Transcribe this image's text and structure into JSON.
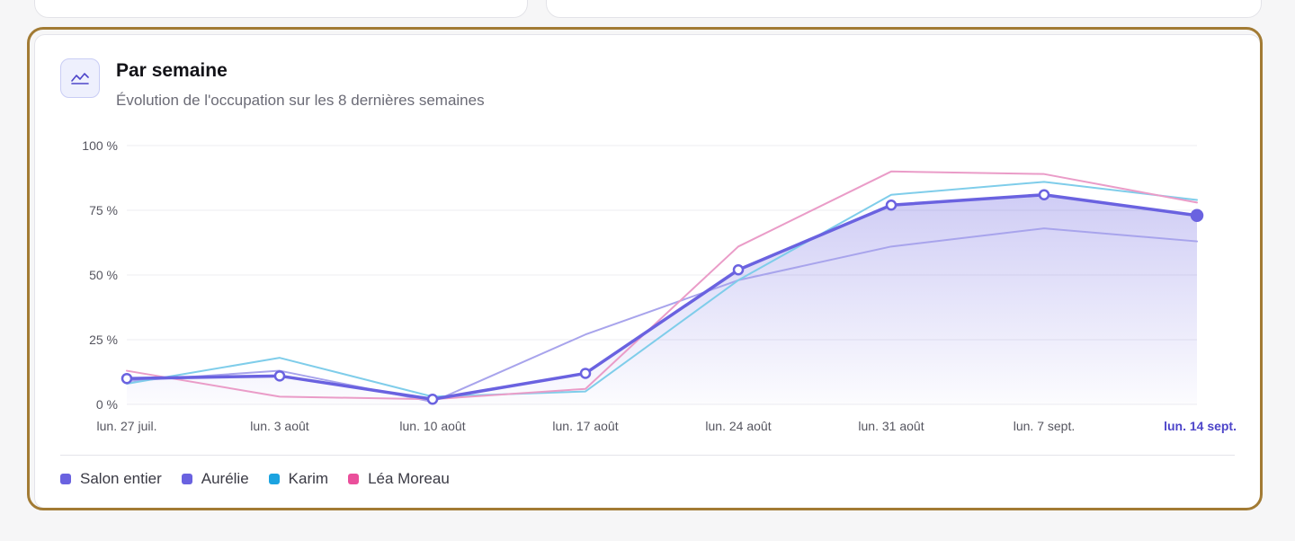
{
  "card": {
    "title": "Par semaine",
    "subtitle": "Évolution de l'occupation sur les 8 dernières semaines",
    "icon": "line-chart-icon"
  },
  "colors": {
    "accent": "#6a62e0",
    "aurelie": "#a8a4ec",
    "karim": "#7fcdea",
    "lea": "#ea9cc8",
    "highlight": "#a27b34",
    "current_label": "#4d45c9"
  },
  "legend": [
    {
      "label": "Salon entier",
      "color": "#6a62e0"
    },
    {
      "label": "Aurélie",
      "color": "#6a62e0"
    },
    {
      "label": "Karim",
      "color": "#1ba3e0"
    },
    {
      "label": "Léa Moreau",
      "color": "#ea4f9b"
    }
  ],
  "chart_data": {
    "type": "line",
    "categories": [
      "lun. 27 juil.",
      "lun. 3 août",
      "lun. 10 août",
      "lun. 17 août",
      "lun. 24 août",
      "lun. 31 août",
      "lun. 7 sept.",
      "lun. 14 sept."
    ],
    "highlighted_category": "lun. 14 sept.",
    "yticks": [
      "0 %",
      "25 %",
      "50 %",
      "75 %",
      "100 %"
    ],
    "ylim": [
      0,
      100
    ],
    "grid": true,
    "legend_position": "bottom-left",
    "series": [
      {
        "name": "Salon entier",
        "values": [
          10,
          11,
          2,
          12,
          52,
          77,
          81,
          73
        ],
        "area": true,
        "markers": true,
        "emphasis": true
      },
      {
        "name": "Aurélie",
        "values": [
          9,
          13,
          1,
          27,
          48,
          61,
          68,
          63
        ]
      },
      {
        "name": "Karim",
        "values": [
          8,
          18,
          3,
          5,
          48,
          81,
          86,
          79
        ]
      },
      {
        "name": "Léa Moreau",
        "values": [
          13,
          3,
          2,
          6,
          61,
          90,
          89,
          78
        ]
      }
    ]
  }
}
